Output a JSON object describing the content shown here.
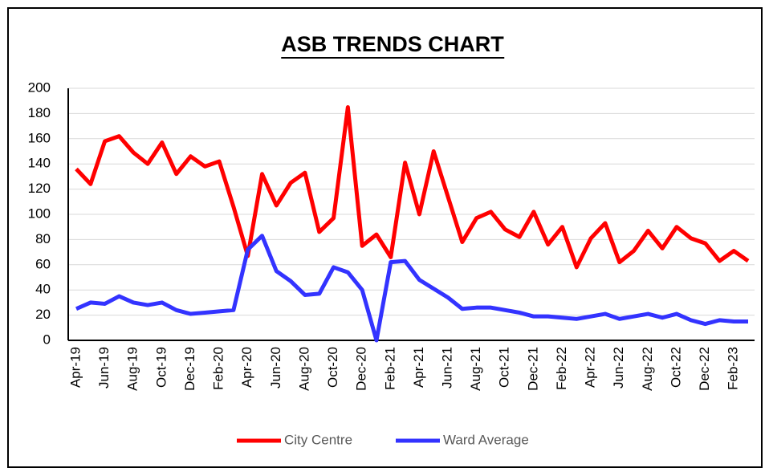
{
  "chart_data": {
    "type": "line",
    "title": "ASB TRENDS CHART",
    "categories": [
      "Apr-19",
      null,
      "Jun-19",
      null,
      "Aug-19",
      null,
      "Oct-19",
      null,
      "Dec-19",
      null,
      "Feb-20",
      null,
      "Apr-20",
      null,
      "Jun-20",
      null,
      "Aug-20",
      null,
      "Oct-20",
      null,
      "Dec-20",
      null,
      "Feb-21",
      null,
      "Apr-21",
      null,
      "Jun-21",
      null,
      "Aug-21",
      null,
      "Oct-21",
      null,
      "Dec-21",
      null,
      "Feb-22",
      null,
      "Apr-22",
      null,
      "Jun-22",
      null,
      "Aug-22",
      null,
      "Oct-22",
      null,
      "Dec-22",
      null,
      "Feb-23",
      null
    ],
    "series": [
      {
        "name": "City Centre",
        "color": "#ff0000",
        "values": [
          136,
          124,
          158,
          162,
          149,
          140,
          157,
          132,
          146,
          138,
          142,
          106,
          67,
          132,
          107,
          125,
          133,
          86,
          97,
          185,
          75,
          84,
          66,
          141,
          100,
          150,
          114,
          78,
          97,
          102,
          88,
          82,
          102,
          76,
          90,
          58,
          81,
          93,
          62,
          71,
          87,
          73,
          90,
          81,
          77,
          63,
          71,
          63
        ]
      },
      {
        "name": "Ward Average",
        "color": "#3333ff",
        "values": [
          25,
          30,
          29,
          35,
          30,
          28,
          30,
          24,
          21,
          22,
          23,
          24,
          72,
          83,
          55,
          47,
          36,
          37,
          58,
          54,
          40,
          0,
          62,
          63,
          48,
          41,
          34,
          25,
          26,
          26,
          24,
          22,
          19,
          19,
          18,
          17,
          19,
          21,
          17,
          19,
          21,
          18,
          21,
          16,
          13,
          16,
          15,
          15
        ]
      }
    ],
    "ylim": [
      0,
      200
    ],
    "yticks": [
      0,
      20,
      40,
      60,
      80,
      100,
      120,
      140,
      160,
      180,
      200
    ],
    "grid": true,
    "legend": "bottom"
  }
}
